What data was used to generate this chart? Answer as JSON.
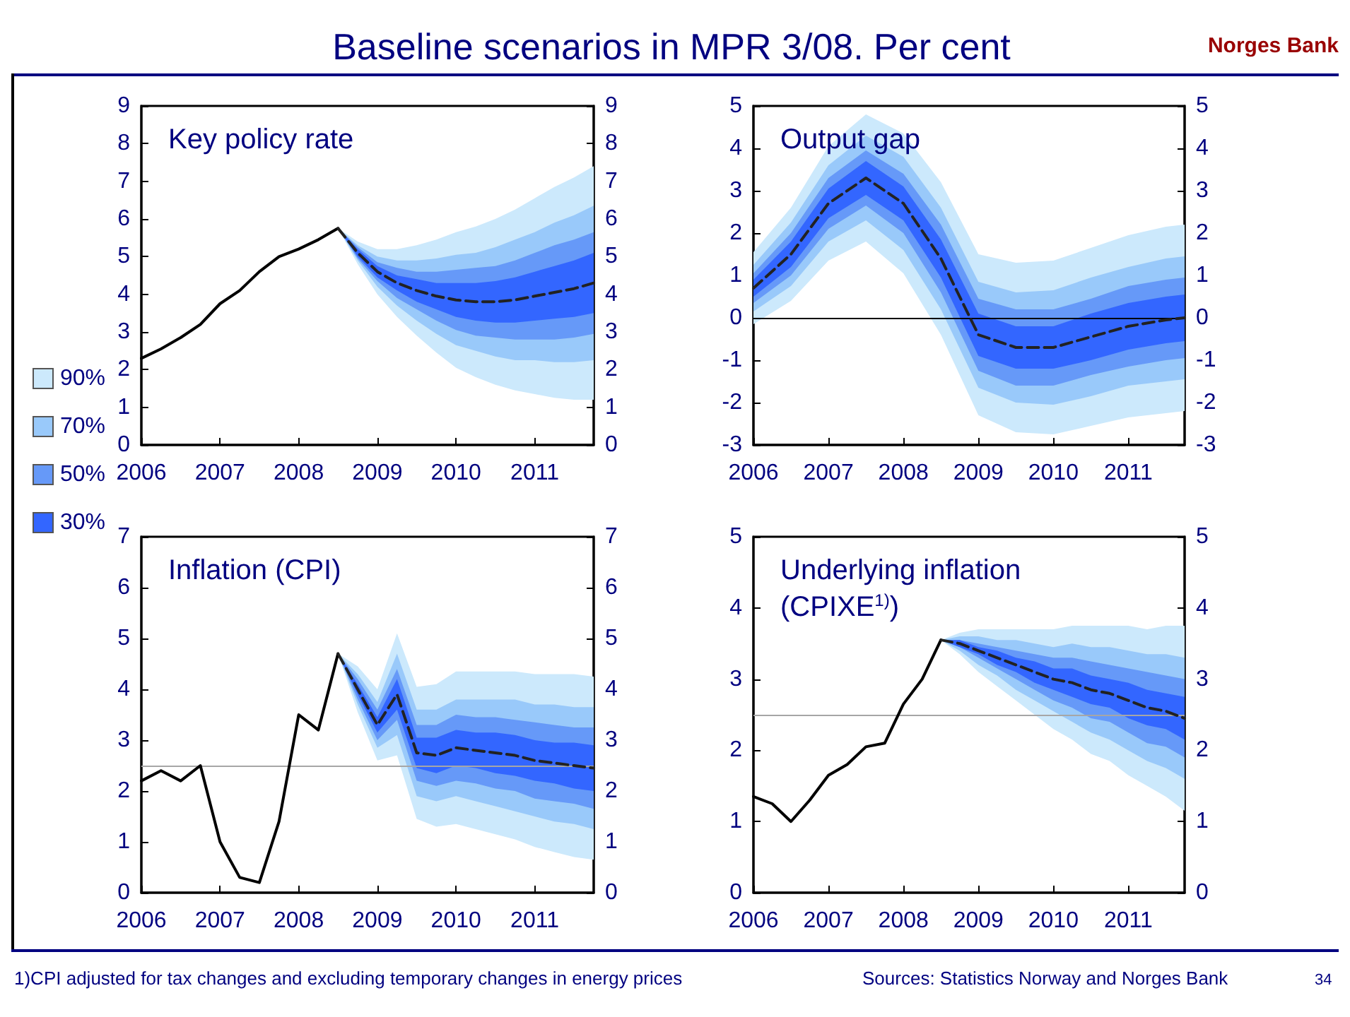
{
  "chart_data": [
    {
      "type": "line",
      "title": "Key policy rate",
      "legend": "left",
      "marker": "none",
      "grid": false,
      "annotations": [
        "Baseline scenarios in MPR 3/08. Per cent",
        "Norges Bank",
        "1)CPI adjusted for tax changes and excluding temporary changes in energy prices",
        "Sources: Statistics Norway and Norges Bank",
        "34"
      ],
      "xlim": [
        2006,
        2011.75
      ],
      "xticks": [
        2006,
        2007,
        2008,
        2009,
        2010,
        2011
      ],
      "ylim": [
        0,
        9
      ],
      "yticks": [
        0,
        1,
        2,
        3,
        4,
        5,
        6,
        7,
        8,
        9
      ],
      "y2lim": [
        0,
        9
      ],
      "y2ticks": [
        0,
        1,
        2,
        3,
        4,
        5,
        6,
        7,
        8,
        9
      ],
      "series": [
        {
          "name": "90%",
          "color": "#cce9fc",
          "x": [
            2008.5,
            2008.75,
            2009,
            2009.25,
            2009.5,
            2009.75,
            2010,
            2010.25,
            2010.5,
            2010.75,
            2011,
            2011.25,
            2011.5,
            2011.75
          ],
          "values": [
            null,
            null,
            null,
            null,
            null,
            null,
            null,
            null,
            null,
            null,
            null,
            null,
            null,
            null
          ],
          "lower": [
            5.75,
            4.8,
            4.0,
            3.4,
            2.9,
            2.45,
            2.05,
            1.8,
            1.6,
            1.45,
            1.35,
            1.25,
            1.2,
            1.2
          ],
          "upper": [
            5.75,
            5.4,
            5.2,
            5.2,
            5.3,
            5.45,
            5.65,
            5.8,
            6.0,
            6.25,
            6.55,
            6.85,
            7.1,
            7.4
          ]
        },
        {
          "name": "70%",
          "color": "#99c9fa",
          "x": [
            2008.5,
            2008.75,
            2009,
            2009.25,
            2009.5,
            2009.75,
            2010,
            2010.25,
            2010.5,
            2010.75,
            2011,
            2011.25,
            2011.5,
            2011.75
          ],
          "values": [
            null,
            null,
            null,
            null,
            null,
            null,
            null,
            null,
            null,
            null,
            null,
            null,
            null,
            null
          ],
          "lower": [
            5.75,
            4.9,
            4.2,
            3.7,
            3.3,
            2.95,
            2.65,
            2.5,
            2.35,
            2.25,
            2.25,
            2.2,
            2.2,
            2.25
          ],
          "upper": [
            5.75,
            5.3,
            5.0,
            4.9,
            4.9,
            4.95,
            5.05,
            5.1,
            5.25,
            5.45,
            5.65,
            5.9,
            6.1,
            6.35
          ]
        },
        {
          "name": "50%",
          "color": "#6699f8",
          "x": [
            2008.5,
            2008.75,
            2009,
            2009.25,
            2009.5,
            2009.75,
            2010,
            2010.25,
            2010.5,
            2010.75,
            2011,
            2011.25,
            2011.5,
            2011.75
          ],
          "values": [
            null,
            null,
            null,
            null,
            null,
            null,
            null,
            null,
            null,
            null,
            null,
            null,
            null,
            null
          ],
          "lower": [
            5.75,
            4.95,
            4.35,
            3.9,
            3.6,
            3.3,
            3.05,
            2.9,
            2.85,
            2.8,
            2.8,
            2.8,
            2.85,
            2.95
          ],
          "upper": [
            5.75,
            5.25,
            4.85,
            4.7,
            4.6,
            4.6,
            4.65,
            4.7,
            4.75,
            4.9,
            5.1,
            5.3,
            5.45,
            5.65
          ]
        },
        {
          "name": "30%",
          "color": "#3366ff",
          "x": [
            2008.5,
            2008.75,
            2009,
            2009.25,
            2009.5,
            2009.75,
            2010,
            2010.25,
            2010.5,
            2010.75,
            2011,
            2011.25,
            2011.5,
            2011.75
          ],
          "values": [
            null,
            null,
            null,
            null,
            null,
            null,
            null,
            null,
            null,
            null,
            null,
            null,
            null,
            null
          ],
          "lower": [
            5.75,
            5.0,
            4.45,
            4.1,
            3.8,
            3.6,
            3.4,
            3.3,
            3.25,
            3.25,
            3.3,
            3.35,
            3.4,
            3.5
          ],
          "upper": [
            5.75,
            5.2,
            4.75,
            4.5,
            4.4,
            4.3,
            4.3,
            4.3,
            4.35,
            4.45,
            4.6,
            4.75,
            4.9,
            5.1
          ]
        },
        {
          "color": "#000000",
          "line_style": "solid",
          "x": [
            2006,
            2006.25,
            2006.5,
            2006.75,
            2007,
            2007.25,
            2007.5,
            2007.75,
            2008,
            2008.25,
            2008.5
          ],
          "values": [
            2.3,
            2.55,
            2.85,
            3.2,
            3.75,
            4.1,
            4.6,
            5.0,
            5.2,
            5.45,
            5.75
          ]
        },
        {
          "color": "#222222",
          "line_style": "dashed",
          "x": [
            2008.5,
            2008.75,
            2009,
            2009.25,
            2009.5,
            2009.75,
            2010,
            2010.25,
            2010.5,
            2010.75,
            2011,
            2011.25,
            2011.5,
            2011.75
          ],
          "values": [
            5.75,
            5.1,
            4.6,
            4.3,
            4.1,
            3.95,
            3.85,
            3.8,
            3.8,
            3.85,
            3.95,
            4.05,
            4.15,
            4.3
          ]
        }
      ]
    },
    {
      "type": "line",
      "title": "Output gap",
      "marker": "none",
      "grid": false,
      "xlim": [
        2006,
        2011.75
      ],
      "xticks": [
        2006,
        2007,
        2008,
        2009,
        2010,
        2011
      ],
      "ylim": [
        -3,
        5
      ],
      "yticks": [
        -3,
        -2,
        -1,
        0,
        1,
        2,
        3,
        4,
        5
      ],
      "y2lim": [
        -3,
        5
      ],
      "y2ticks": [
        -3,
        -2,
        -1,
        0,
        1,
        2,
        3,
        4,
        5
      ],
      "ref_lines": [
        {
          "axis": "y",
          "value": 0,
          "color": "#000000"
        }
      ],
      "series": [
        {
          "color": "#cce9fc",
          "x": [
            2006,
            2006.5,
            2007,
            2007.5,
            2008,
            2008.5,
            2009,
            2009.5,
            2010,
            2010.5,
            2011,
            2011.5,
            2011.75
          ],
          "values": [
            null,
            null,
            null,
            null,
            null,
            null,
            null,
            null,
            null,
            null,
            null,
            null,
            null
          ],
          "lower": [
            -0.15,
            0.4,
            1.35,
            1.8,
            1.05,
            -0.4,
            -2.3,
            -2.7,
            -2.75,
            -2.55,
            -2.35,
            -2.25,
            -2.2
          ],
          "upper": [
            1.55,
            2.6,
            4.05,
            4.8,
            4.35,
            3.2,
            1.5,
            1.3,
            1.35,
            1.65,
            1.95,
            2.15,
            2.2
          ]
        },
        {
          "color": "#99c9fa",
          "x": [
            2006,
            2006.5,
            2007,
            2007.5,
            2008,
            2008.5,
            2009,
            2009.5,
            2010,
            2010.5,
            2011,
            2011.5,
            2011.75
          ],
          "values": [
            null,
            null,
            null,
            null,
            null,
            null,
            null,
            null,
            null,
            null,
            null,
            null,
            null
          ],
          "lower": [
            0.15,
            0.75,
            1.8,
            2.3,
            1.6,
            0.2,
            -1.65,
            -2.0,
            -2.05,
            -1.85,
            -1.6,
            -1.5,
            -1.45
          ],
          "upper": [
            1.25,
            2.25,
            3.6,
            4.3,
            3.8,
            2.6,
            0.85,
            0.6,
            0.65,
            0.95,
            1.2,
            1.4,
            1.45
          ]
        },
        {
          "color": "#6699f8",
          "x": [
            2006,
            2006.5,
            2007,
            2007.5,
            2008,
            2008.5,
            2009,
            2009.5,
            2010,
            2010.5,
            2011,
            2011.5,
            2011.75
          ],
          "values": [
            null,
            null,
            null,
            null,
            null,
            null,
            null,
            null,
            null,
            null,
            null,
            null,
            null
          ],
          "lower": [
            0.35,
            1.0,
            2.1,
            2.65,
            2.0,
            0.6,
            -1.25,
            -1.6,
            -1.6,
            -1.35,
            -1.15,
            -1.0,
            -0.95
          ],
          "upper": [
            1.05,
            2.0,
            3.3,
            3.95,
            3.4,
            2.2,
            0.45,
            0.2,
            0.2,
            0.45,
            0.75,
            0.9,
            0.95
          ]
        },
        {
          "color": "#3366ff",
          "x": [
            2006,
            2006.5,
            2007,
            2007.5,
            2008,
            2008.5,
            2009,
            2009.5,
            2010,
            2010.5,
            2011,
            2011.5,
            2011.75
          ],
          "values": [
            null,
            null,
            null,
            null,
            null,
            null,
            null,
            null,
            null,
            null,
            null,
            null,
            null
          ],
          "lower": [
            0.5,
            1.2,
            2.35,
            2.9,
            2.3,
            0.95,
            -0.9,
            -1.2,
            -1.2,
            -1.0,
            -0.75,
            -0.6,
            -0.55
          ],
          "upper": [
            0.9,
            1.8,
            3.05,
            3.7,
            3.1,
            1.85,
            0.1,
            -0.2,
            -0.2,
            0.1,
            0.35,
            0.5,
            0.55
          ]
        },
        {
          "color": "#222222",
          "line_style": "dashed",
          "x": [
            2006,
            2006.5,
            2007,
            2007.5,
            2008,
            2008.5,
            2009,
            2009.5,
            2010,
            2010.5,
            2011,
            2011.5,
            2011.75
          ],
          "values": [
            0.7,
            1.5,
            2.7,
            3.3,
            2.7,
            1.4,
            -0.4,
            -0.7,
            -0.7,
            -0.45,
            -0.2,
            -0.05,
            0
          ]
        }
      ]
    },
    {
      "type": "line",
      "title": "Inflation (CPI)",
      "marker": "none",
      "grid": false,
      "xlim": [
        2006,
        2011.75
      ],
      "xticks": [
        2006,
        2007,
        2008,
        2009,
        2010,
        2011
      ],
      "ylim": [
        0,
        7
      ],
      "yticks": [
        0,
        1,
        2,
        3,
        4,
        5,
        6,
        7
      ],
      "y2lim": [
        0,
        7
      ],
      "y2ticks": [
        0,
        1,
        2,
        3,
        4,
        5,
        6,
        7
      ],
      "ref_lines": [
        {
          "axis": "y",
          "value": 2.5,
          "color": "#a6a6a6"
        }
      ],
      "series": [
        {
          "color": "#cce9fc",
          "x": [
            2008.5,
            2008.75,
            2009,
            2009.25,
            2009.5,
            2009.75,
            2010,
            2010.25,
            2010.5,
            2010.75,
            2011,
            2011.25,
            2011.5,
            2011.75
          ],
          "values": [
            null,
            null,
            null,
            null,
            null,
            null,
            null,
            null,
            null,
            null,
            null,
            null,
            null,
            null
          ],
          "lower": [
            4.7,
            3.55,
            2.6,
            2.7,
            1.45,
            1.3,
            1.35,
            1.25,
            1.15,
            1.05,
            0.9,
            0.8,
            0.7,
            0.65
          ],
          "upper": [
            4.7,
            4.45,
            4.0,
            5.1,
            4.05,
            4.1,
            4.35,
            4.35,
            4.35,
            4.35,
            4.3,
            4.3,
            4.3,
            4.25
          ]
        },
        {
          "color": "#99c9fa",
          "x": [
            2008.5,
            2008.75,
            2009,
            2009.25,
            2009.5,
            2009.75,
            2010,
            2010.25,
            2010.5,
            2010.75,
            2011,
            2011.25,
            2011.5,
            2011.75
          ],
          "values": [
            null,
            null,
            null,
            null,
            null,
            null,
            null,
            null,
            null,
            null,
            null,
            null,
            null,
            null
          ],
          "lower": [
            4.7,
            3.7,
            2.85,
            3.1,
            1.9,
            1.8,
            1.9,
            1.8,
            1.7,
            1.6,
            1.5,
            1.4,
            1.35,
            1.25
          ],
          "upper": [
            4.7,
            4.3,
            3.75,
            4.7,
            3.6,
            3.6,
            3.8,
            3.8,
            3.8,
            3.8,
            3.7,
            3.7,
            3.65,
            3.65
          ]
        },
        {
          "color": "#6699f8",
          "x": [
            2008.5,
            2008.75,
            2009,
            2009.25,
            2009.5,
            2009.75,
            2010,
            2010.25,
            2010.5,
            2010.75,
            2011,
            2011.25,
            2011.5,
            2011.75
          ],
          "values": [
            null,
            null,
            null,
            null,
            null,
            null,
            null,
            null,
            null,
            null,
            null,
            null,
            null,
            null
          ],
          "lower": [
            4.7,
            3.8,
            3.0,
            3.4,
            2.2,
            2.1,
            2.2,
            2.15,
            2.05,
            2.0,
            1.85,
            1.8,
            1.75,
            1.65
          ],
          "upper": [
            4.7,
            4.2,
            3.6,
            4.4,
            3.3,
            3.3,
            3.5,
            3.45,
            3.45,
            3.4,
            3.35,
            3.3,
            3.25,
            3.25
          ]
        },
        {
          "color": "#3366ff",
          "x": [
            2008.5,
            2008.75,
            2009,
            2009.25,
            2009.5,
            2009.75,
            2010,
            2010.25,
            2010.5,
            2010.75,
            2011,
            2011.25,
            2011.5,
            2011.75
          ],
          "values": [
            null,
            null,
            null,
            null,
            null,
            null,
            null,
            null,
            null,
            null,
            null,
            null,
            null,
            null
          ],
          "lower": [
            4.7,
            3.9,
            3.15,
            3.6,
            2.45,
            2.35,
            2.5,
            2.45,
            2.35,
            2.3,
            2.2,
            2.15,
            2.05,
            2.0
          ],
          "upper": [
            4.7,
            4.1,
            3.45,
            4.2,
            3.05,
            3.05,
            3.2,
            3.15,
            3.15,
            3.1,
            3.0,
            2.95,
            2.95,
            2.9
          ]
        },
        {
          "color": "#000000",
          "line_style": "solid",
          "x": [
            2006,
            2006.25,
            2006.5,
            2006.75,
            2007,
            2007.25,
            2007.5,
            2007.75,
            2008,
            2008.25,
            2008.5
          ],
          "values": [
            2.2,
            2.4,
            2.2,
            2.5,
            1.0,
            0.3,
            0.2,
            1.4,
            3.5,
            3.2,
            4.7
          ]
        },
        {
          "color": "#222222",
          "line_style": "dashed",
          "x": [
            2008.5,
            2008.75,
            2009,
            2009.25,
            2009.5,
            2009.75,
            2010,
            2010.25,
            2010.5,
            2010.75,
            2011,
            2011.25,
            2011.5,
            2011.75
          ],
          "values": [
            4.7,
            4.0,
            3.3,
            3.9,
            2.75,
            2.7,
            2.85,
            2.8,
            2.75,
            2.7,
            2.6,
            2.55,
            2.5,
            2.45
          ]
        }
      ]
    },
    {
      "type": "line",
      "title": "Underlying inflation\n(CPIXE$^{1)}$)",
      "marker": "none",
      "grid": false,
      "xlim": [
        2006,
        2011.75
      ],
      "xticks": [
        2006,
        2007,
        2008,
        2009,
        2010,
        2011
      ],
      "ylim": [
        0,
        5
      ],
      "yticks": [
        0,
        1,
        2,
        3,
        4,
        5
      ],
      "y2lim": [
        0,
        5
      ],
      "y2ticks": [
        0,
        1,
        2,
        3,
        4,
        5
      ],
      "ref_lines": [
        {
          "axis": "y",
          "value": 2.5,
          "color": "#a6a6a6"
        }
      ],
      "series": [
        {
          "color": "#cce9fc",
          "x": [
            2008.5,
            2008.75,
            2009,
            2009.25,
            2009.5,
            2009.75,
            2010,
            2010.25,
            2010.5,
            2010.75,
            2011,
            2011.25,
            2011.5,
            2011.75
          ],
          "values": [
            null,
            null,
            null,
            null,
            null,
            null,
            null,
            null,
            null,
            null,
            null,
            null,
            null,
            null
          ],
          "lower": [
            3.55,
            3.35,
            3.1,
            2.9,
            2.7,
            2.5,
            2.3,
            2.15,
            1.95,
            1.85,
            1.65,
            1.5,
            1.35,
            1.15
          ],
          "upper": [
            3.55,
            3.65,
            3.7,
            3.7,
            3.7,
            3.7,
            3.7,
            3.75,
            3.75,
            3.75,
            3.75,
            3.7,
            3.75,
            3.75
          ]
        },
        {
          "color": "#99c9fa",
          "x": [
            2008.5,
            2008.75,
            2009,
            2009.25,
            2009.5,
            2009.75,
            2010,
            2010.25,
            2010.5,
            2010.75,
            2011,
            2011.25,
            2011.5,
            2011.75
          ],
          "values": [
            null,
            null,
            null,
            null,
            null,
            null,
            null,
            null,
            null,
            null,
            null,
            null,
            null,
            null
          ],
          "lower": [
            3.55,
            3.4,
            3.2,
            3.05,
            2.85,
            2.7,
            2.55,
            2.4,
            2.25,
            2.15,
            2.0,
            1.85,
            1.75,
            1.6
          ],
          "upper": [
            3.55,
            3.6,
            3.6,
            3.55,
            3.55,
            3.5,
            3.45,
            3.5,
            3.45,
            3.45,
            3.4,
            3.35,
            3.35,
            3.3
          ]
        },
        {
          "color": "#6699f8",
          "x": [
            2008.5,
            2008.75,
            2009,
            2009.25,
            2009.5,
            2009.75,
            2010,
            2010.25,
            2010.5,
            2010.75,
            2011,
            2011.25,
            2011.5,
            2011.75
          ],
          "values": [
            null,
            null,
            null,
            null,
            null,
            null,
            null,
            null,
            null,
            null,
            null,
            null,
            null,
            null
          ],
          "lower": [
            3.55,
            3.45,
            3.3,
            3.15,
            3.0,
            2.85,
            2.7,
            2.6,
            2.45,
            2.4,
            2.25,
            2.1,
            2.05,
            1.9
          ],
          "upper": [
            3.55,
            3.55,
            3.5,
            3.45,
            3.4,
            3.35,
            3.3,
            3.3,
            3.25,
            3.2,
            3.15,
            3.1,
            3.05,
            3.0
          ]
        },
        {
          "color": "#3366ff",
          "x": [
            2008.5,
            2008.75,
            2009,
            2009.25,
            2009.5,
            2009.75,
            2010,
            2010.25,
            2010.5,
            2010.75,
            2011,
            2011.25,
            2011.5,
            2011.75
          ],
          "values": [
            null,
            null,
            null,
            null,
            null,
            null,
            null,
            null,
            null,
            null,
            null,
            null,
            null,
            null
          ],
          "lower": [
            3.55,
            3.45,
            3.35,
            3.2,
            3.1,
            2.95,
            2.85,
            2.75,
            2.65,
            2.6,
            2.45,
            2.35,
            2.3,
            2.15
          ],
          "upper": [
            3.55,
            3.55,
            3.45,
            3.4,
            3.3,
            3.25,
            3.15,
            3.15,
            3.05,
            3.0,
            2.95,
            2.85,
            2.8,
            2.75
          ]
        },
        {
          "color": "#000000",
          "line_style": "solid",
          "x": [
            2006,
            2006.25,
            2006.5,
            2006.75,
            2007,
            2007.25,
            2007.5,
            2007.75,
            2008,
            2008.25,
            2008.5
          ],
          "values": [
            1.35,
            1.25,
            1.0,
            1.3,
            1.65,
            1.8,
            2.05,
            2.1,
            2.65,
            3.0,
            3.55
          ]
        },
        {
          "color": "#222222",
          "line_style": "dashed",
          "x": [
            2008.5,
            2008.75,
            2009,
            2009.25,
            2009.5,
            2009.75,
            2010,
            2010.25,
            2010.5,
            2010.75,
            2011,
            2011.25,
            2011.5,
            2011.75
          ],
          "values": [
            3.55,
            3.5,
            3.4,
            3.3,
            3.2,
            3.1,
            3.0,
            2.95,
            2.85,
            2.8,
            2.7,
            2.6,
            2.55,
            2.45
          ]
        }
      ]
    }
  ]
}
